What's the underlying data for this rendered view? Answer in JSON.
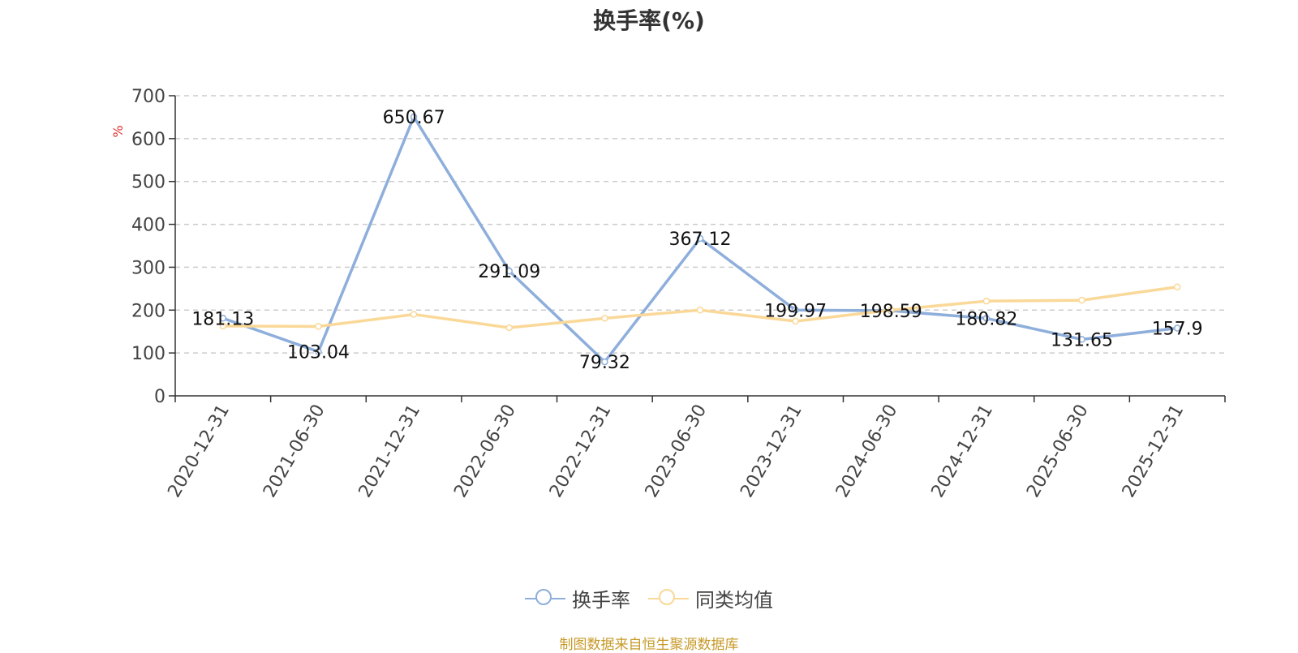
{
  "title": "换手率(%)",
  "source": "制图数据来自恒生聚源数据库",
  "chart_data": {
    "type": "line",
    "title": "换手率(%)",
    "ylabel": "%",
    "xlabel": "",
    "ylim": [
      0,
      700
    ],
    "yticks": [
      0,
      100,
      200,
      300,
      400,
      500,
      600,
      700
    ],
    "grid": true,
    "legend_position": "bottom-center",
    "categories": [
      "2020-12-31",
      "2021-06-30",
      "2021-12-31",
      "2022-06-30",
      "2022-12-31",
      "2023-06-30",
      "2023-12-31",
      "2024-06-30",
      "2024-12-31",
      "2025-06-30",
      "2025-12-31"
    ],
    "series": [
      {
        "name": "换手率",
        "color": "#8eaedb",
        "values": [
          181.13,
          103.04,
          650.67,
          291.09,
          79.32,
          367.12,
          199.97,
          198.59,
          180.82,
          131.65,
          157.9
        ],
        "labels": [
          "181.13",
          "103.04",
          "650.67",
          "291.09",
          "79.32",
          "367.12",
          "199.97",
          "198.59",
          "180.82",
          "131.65",
          "157.9"
        ]
      },
      {
        "name": "同类均值",
        "color": "#fad898",
        "values": [
          163,
          162,
          190,
          159,
          181,
          200,
          174,
          200,
          221,
          223,
          254
        ]
      }
    ]
  }
}
